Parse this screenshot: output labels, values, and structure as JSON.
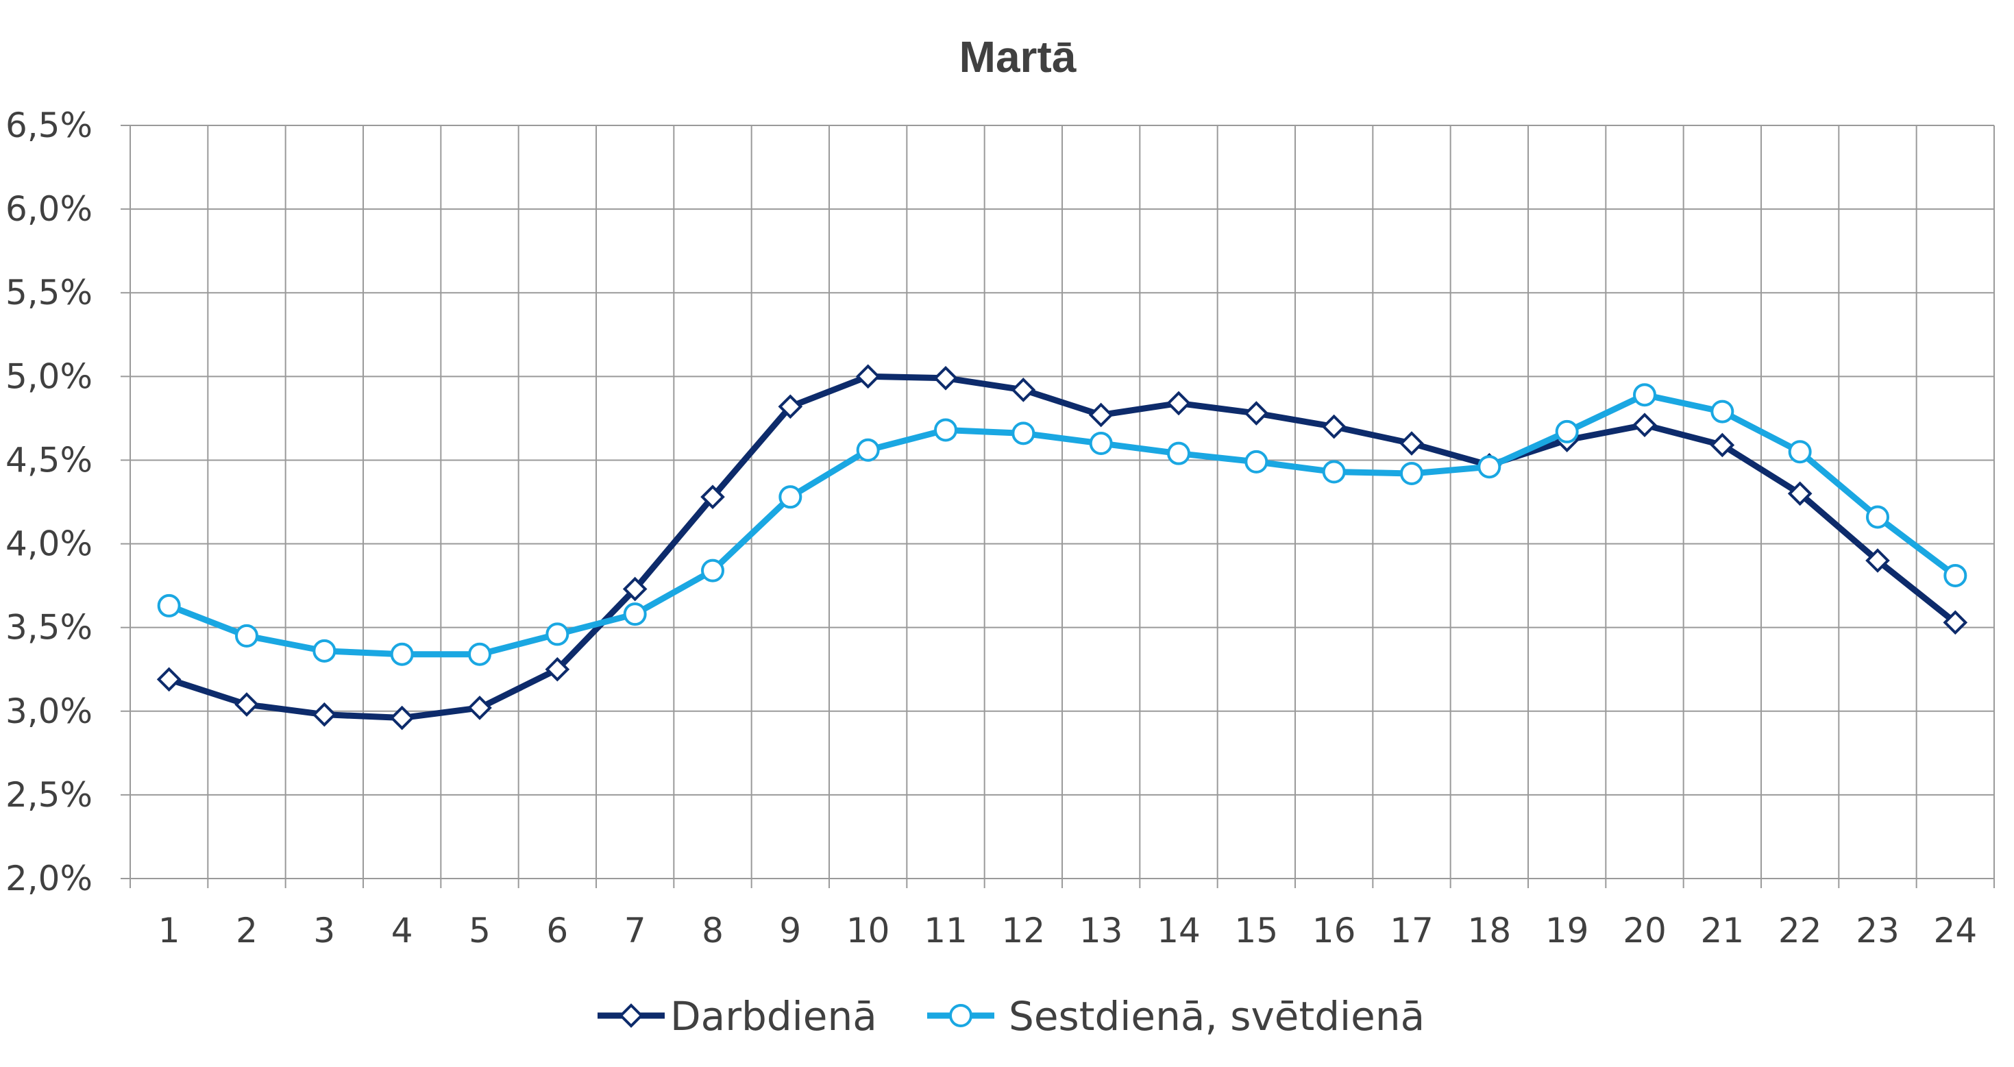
{
  "chart_data": {
    "type": "line",
    "title": "Martā",
    "xlabel": "",
    "ylabel": "",
    "categories": [
      "1",
      "2",
      "3",
      "4",
      "5",
      "6",
      "7",
      "8",
      "9",
      "10",
      "11",
      "12",
      "13",
      "14",
      "15",
      "16",
      "17",
      "18",
      "19",
      "20",
      "21",
      "22",
      "23",
      "24"
    ],
    "ylim": [
      2.0,
      6.5
    ],
    "yticks": [
      "2,0%",
      "2,5%",
      "3,0%",
      "3,5%",
      "4,0%",
      "4,5%",
      "5,0%",
      "5,5%",
      "6,0%",
      "6,5%"
    ],
    "grid": true,
    "legend_position": "bottom",
    "series": [
      {
        "name": "Darbdienā",
        "color": "#0d2b6b",
        "marker": "diamond",
        "values": [
          3.19,
          3.04,
          2.98,
          2.96,
          3.02,
          3.25,
          3.73,
          4.28,
          4.82,
          5.0,
          4.99,
          4.92,
          4.77,
          4.84,
          4.78,
          4.7,
          4.6,
          4.47,
          4.62,
          4.71,
          4.59,
          4.3,
          3.9,
          3.53
        ]
      },
      {
        "name": "Sestdienā, svētdienā",
        "color": "#1aa7e2",
        "marker": "circle",
        "values": [
          3.63,
          3.45,
          3.36,
          3.34,
          3.34,
          3.46,
          3.58,
          3.84,
          4.28,
          4.56,
          4.68,
          4.66,
          4.6,
          4.54,
          4.49,
          4.43,
          4.42,
          4.46,
          4.67,
          4.89,
          4.79,
          4.55,
          4.16,
          3.81
        ]
      }
    ]
  }
}
